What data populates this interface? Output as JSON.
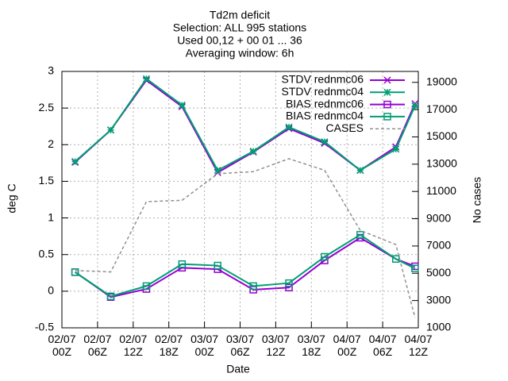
{
  "chart_data": {
    "type": "line",
    "title": [
      "Td2m deficit",
      "Selection: ALL    995 stations",
      "Used 00,12 + 00 01 ... 36",
      "Averaging window:  6h"
    ],
    "xlabel": "Date",
    "ylabel": "deg C",
    "y2label": "No cases",
    "x": [
      2,
      7.4,
      12.8,
      18.2,
      23.6,
      29,
      34.4,
      39.8,
      45.2,
      50.6,
      53.5
    ],
    "xlim": [
      0,
      54
    ],
    "xticks": [
      {
        "value": 0,
        "label": "02/07\n00Z"
      },
      {
        "value": 6,
        "label": "02/07\n06Z"
      },
      {
        "value": 12,
        "label": "02/07\n12Z"
      },
      {
        "value": 18,
        "label": "02/07\n18Z"
      },
      {
        "value": 24,
        "label": "03/07\n00Z"
      },
      {
        "value": 30,
        "label": "03/07\n06Z"
      },
      {
        "value": 36,
        "label": "03/07\n12Z"
      },
      {
        "value": 42,
        "label": "03/07\n18Z"
      },
      {
        "value": 48,
        "label": "04/07\n00Z"
      },
      {
        "value": 54,
        "label": "04/07\n06Z"
      },
      {
        "value": 60,
        "label": "04/07\n12Z"
      }
    ],
    "ylim": [
      -0.5,
      3
    ],
    "yticks": [
      -0.5,
      0,
      0.5,
      1,
      1.5,
      2,
      2.5,
      3
    ],
    "y2lim": [
      1000,
      19800
    ],
    "y2ticks": [
      1000,
      3000,
      5000,
      7000,
      9000,
      11000,
      13000,
      15000,
      17000,
      19000
    ],
    "grid": true,
    "legend": "top-right",
    "series": [
      {
        "name": "STDV rednmc06",
        "color": "#9400d3",
        "marker": "x",
        "values": [
          1.76,
          2.2,
          2.88,
          2.52,
          1.62,
          1.9,
          2.22,
          2.02,
          1.65,
          1.97,
          2.56
        ]
      },
      {
        "name": "STDV rednmc04",
        "color": "#009e73",
        "marker": "star",
        "values": [
          1.77,
          2.2,
          2.9,
          2.54,
          1.65,
          1.91,
          2.24,
          2.04,
          1.65,
          1.94,
          2.53
        ]
      },
      {
        "name": "BIAS rednmc06",
        "color": "#9400d3",
        "marker": "square",
        "values": [
          0.26,
          -0.08,
          0.03,
          0.32,
          0.3,
          0.02,
          0.05,
          0.42,
          0.73,
          0.44,
          0.34
        ]
      },
      {
        "name": "BIAS rednmc04",
        "color": "#009e73",
        "marker": "square",
        "values": [
          0.26,
          -0.07,
          0.07,
          0.37,
          0.35,
          0.07,
          0.11,
          0.47,
          0.77,
          0.44,
          0.31
        ]
      },
      {
        "name": "CASES",
        "color": "#909090",
        "marker": "none",
        "dash": true,
        "axis": "y2",
        "values": [
          5200,
          5100,
          10250,
          10350,
          12300,
          12450,
          13400,
          12550,
          8150,
          7100,
          1750
        ]
      }
    ]
  }
}
